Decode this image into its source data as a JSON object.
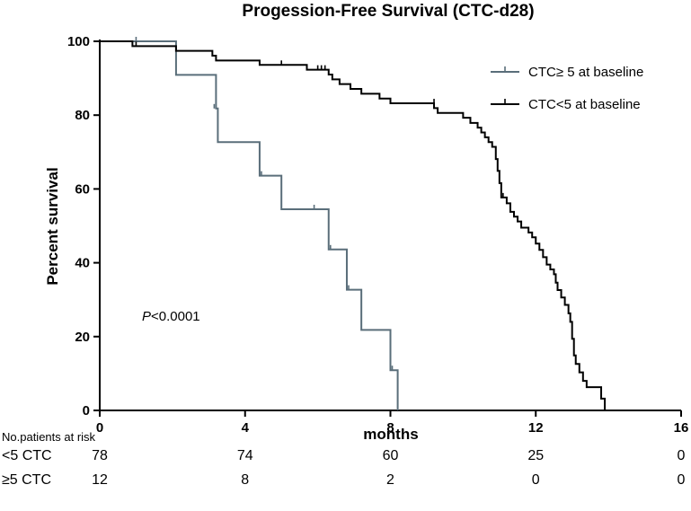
{
  "chart_data": {
    "type": "line",
    "subtype": "kaplan-meier",
    "title": "Progession-Free Survival (CTC-d28)",
    "xlabel": "months",
    "ylabel": "Percent survival",
    "xlim": [
      0,
      16
    ],
    "ylim": [
      0,
      100
    ],
    "xticks": [
      0,
      4,
      8,
      12,
      16
    ],
    "yticks": [
      0,
      20,
      40,
      60,
      80,
      100
    ],
    "xtick_labels": [
      "0",
      "4",
      "8",
      "12",
      "16"
    ],
    "ytick_labels": [
      "0",
      "20",
      "40",
      "60",
      "80",
      "100"
    ],
    "annotation": {
      "italic": "P",
      "text": "<0.0001"
    },
    "series": [
      {
        "name": "CTC≥ 5 at baseline",
        "color": "#5a6e7a",
        "steps": [
          [
            0,
            100
          ],
          [
            2.1,
            90.9
          ],
          [
            3.2,
            81.8
          ],
          [
            3.25,
            72.7
          ],
          [
            4.4,
            63.6
          ],
          [
            5.0,
            54.5
          ],
          [
            6.3,
            43.6
          ],
          [
            6.8,
            32.7
          ],
          [
            7.2,
            21.8
          ],
          [
            8.0,
            10.9
          ],
          [
            8.2,
            0
          ]
        ],
        "censors": [
          [
            1.0,
            100
          ],
          [
            3.15,
            81.8
          ],
          [
            4.45,
            63.6
          ],
          [
            5.9,
            54.5
          ],
          [
            6.35,
            43.6
          ],
          [
            6.85,
            32.7
          ],
          [
            8.05,
            10.9
          ]
        ]
      },
      {
        "name": "CTC<5 at baseline",
        "color": "#000000",
        "steps": [
          [
            0,
            100
          ],
          [
            0.9,
            98.7
          ],
          [
            2.1,
            97.4
          ],
          [
            3.1,
            96.1
          ],
          [
            3.2,
            94.8
          ],
          [
            4.4,
            93.6
          ],
          [
            5.7,
            92.3
          ],
          [
            6.3,
            91.0
          ],
          [
            6.4,
            89.7
          ],
          [
            6.6,
            88.4
          ],
          [
            6.9,
            87.1
          ],
          [
            7.2,
            85.8
          ],
          [
            7.7,
            84.5
          ],
          [
            8.0,
            83.2
          ],
          [
            8.3,
            83.2
          ],
          [
            9.2,
            81.9
          ],
          [
            9.3,
            80.6
          ],
          [
            10.0,
            79.3
          ],
          [
            10.2,
            77.9
          ],
          [
            10.4,
            76.6
          ],
          [
            10.5,
            75.3
          ],
          [
            10.6,
            74.0
          ],
          [
            10.7,
            72.7
          ],
          [
            10.8,
            71.4
          ],
          [
            10.9,
            68.1
          ],
          [
            10.95,
            64.9
          ],
          [
            11.0,
            61.6
          ],
          [
            11.05,
            57.7
          ],
          [
            11.2,
            56.1
          ],
          [
            11.3,
            53.8
          ],
          [
            11.4,
            52.5
          ],
          [
            11.5,
            51.2
          ],
          [
            11.6,
            49.5
          ],
          [
            11.8,
            48.2
          ],
          [
            11.9,
            46.9
          ],
          [
            12.0,
            45.2
          ],
          [
            12.1,
            43.5
          ],
          [
            12.2,
            41.5
          ],
          [
            12.3,
            39.5
          ],
          [
            12.4,
            38.2
          ],
          [
            12.5,
            36.9
          ],
          [
            12.55,
            34.6
          ],
          [
            12.6,
            32.6
          ],
          [
            12.7,
            30.6
          ],
          [
            12.8,
            28.6
          ],
          [
            12.9,
            26.3
          ],
          [
            12.95,
            24.0
          ],
          [
            13.0,
            19.4
          ],
          [
            13.05,
            14.9
          ],
          [
            13.1,
            12.6
          ],
          [
            13.2,
            10.3
          ],
          [
            13.3,
            8.0
          ],
          [
            13.4,
            6.3
          ],
          [
            13.8,
            3.2
          ],
          [
            13.9,
            0
          ]
        ],
        "censors": [
          [
            1.0,
            98.7
          ],
          [
            5.0,
            93.6
          ],
          [
            6.0,
            92.3
          ],
          [
            6.1,
            92.3
          ],
          [
            6.2,
            92.3
          ],
          [
            9.2,
            83.2
          ],
          [
            11.1,
            57.7
          ]
        ]
      }
    ],
    "risk_table": {
      "header": "No.patients at risk",
      "times": [
        0,
        4,
        8,
        12,
        16
      ],
      "rows": [
        {
          "label": "<5 CTC",
          "values": [
            "78",
            "74",
            "60",
            "25",
            "0"
          ]
        },
        {
          "label": "≥5 CTC",
          "values": [
            "12",
            "8",
            "2",
            "0",
            "0"
          ]
        }
      ]
    }
  }
}
